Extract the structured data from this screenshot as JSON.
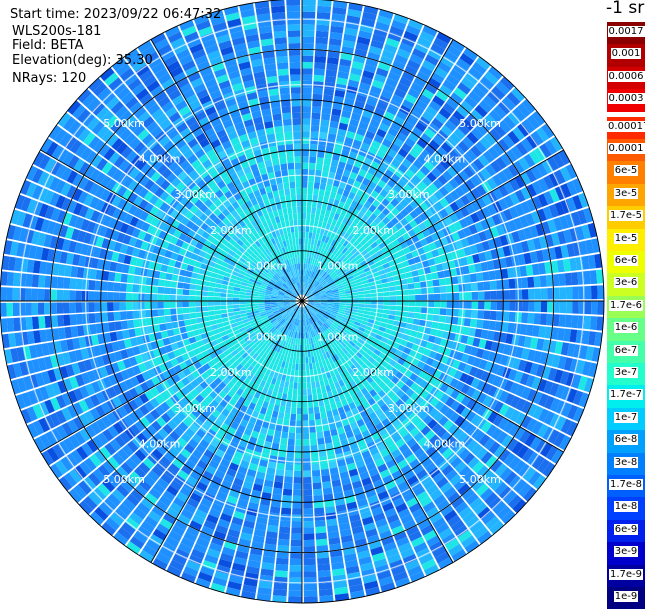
{
  "header": {
    "start_time": "Start time: 2023/09/22 06:47:32",
    "instrument": "WLS200s-181",
    "field": "Field: BETA",
    "elevation": "Elevation(deg): 35.30",
    "nrays": "NRays: 120"
  },
  "colorbar": {
    "title": "-1 sr",
    "levels": [
      {
        "label": "0.0017",
        "color": "#8b0000"
      },
      {
        "label": "0.001",
        "color": "#b20000"
      },
      {
        "label": "0.0006",
        "color": "#d40000"
      },
      {
        "label": "0.0003",
        "color": "#f00000"
      },
      {
        "label": "0.00017",
        "color": "#ff2a00"
      },
      {
        "label": "0.0001",
        "color": "#ff5a00"
      },
      {
        "label": "6e-5",
        "color": "#ff8000"
      },
      {
        "label": "3e-5",
        "color": "#ffa500"
      },
      {
        "label": "1.7e-5",
        "color": "#ffcc00"
      },
      {
        "label": "1e-5",
        "color": "#ffee00"
      },
      {
        "label": "6e-6",
        "color": "#eeff00"
      },
      {
        "label": "3e-6",
        "color": "#ccff22"
      },
      {
        "label": "1.7e-6",
        "color": "#99ff55"
      },
      {
        "label": "1e-6",
        "color": "#66ff88"
      },
      {
        "label": "6e-7",
        "color": "#44ffaa"
      },
      {
        "label": "3e-7",
        "color": "#22ffcc"
      },
      {
        "label": "1.7e-7",
        "color": "#00eeee"
      },
      {
        "label": "1e-7",
        "color": "#00ccff"
      },
      {
        "label": "6e-8",
        "color": "#00a0ff"
      },
      {
        "label": "3e-8",
        "color": "#0080ff"
      },
      {
        "label": "1.7e-8",
        "color": "#0060ff"
      },
      {
        "label": "1e-8",
        "color": "#0040ff"
      },
      {
        "label": "6e-9",
        "color": "#0020ee"
      },
      {
        "label": "3e-9",
        "color": "#0000cc"
      },
      {
        "label": "1.7e-9",
        "color": "#0000a0"
      },
      {
        "label": "1e-9",
        "color": "#000080"
      }
    ]
  },
  "ppi": {
    "nrays": 120,
    "max_range_km": 6,
    "ring_labels": [
      "1.00km",
      "2.00km",
      "3.00km",
      "4.00km",
      "5.00km"
    ],
    "colors": {
      "inner": "#33ccff",
      "mid": "#1ee6e6",
      "outer_a": "#1e90ff",
      "outer_b": "#1a70ee",
      "outer_c": "#22b4ff",
      "outer_d": "#0a50e0"
    }
  }
}
